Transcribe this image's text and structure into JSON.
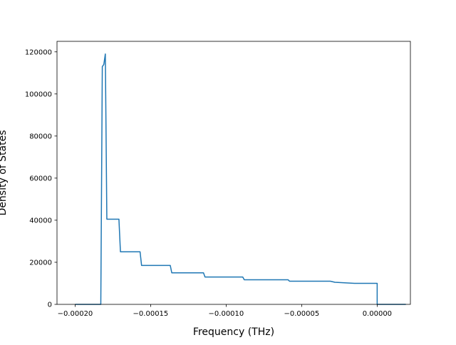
{
  "chart_data": {
    "type": "line",
    "title": "",
    "xlabel": "Frequency (THz)",
    "ylabel": "Density of States",
    "xlim": [
      -0.000212,
      2.2e-05
    ],
    "ylim": [
      0,
      125000
    ],
    "x_ticks": [
      -0.0002,
      -0.00015,
      -0.0001,
      -5e-05,
      0.0
    ],
    "x_tick_labels": [
      "−0.00020",
      "−0.00015",
      "−0.00010",
      "−0.00005",
      "0.00000"
    ],
    "y_ticks": [
      0,
      20000,
      40000,
      60000,
      80000,
      100000,
      120000
    ],
    "y_tick_labels": [
      "0",
      "20000",
      "40000",
      "60000",
      "80000",
      "100000",
      "120000"
    ],
    "grid": false,
    "legend": "none",
    "series": [
      {
        "color": "#1f77b4",
        "x": [
          -0.0002,
          -0.000183,
          -0.000182,
          -0.000181,
          -0.00018,
          -0.000179,
          -0.000178,
          -0.000171,
          -0.00017,
          -0.000157,
          -0.000156,
          -0.000137,
          -0.000136,
          -0.000115,
          -0.000114,
          -8.9e-05,
          -8.8e-05,
          -5.9e-05,
          -5.8e-05,
          -3.1e-05,
          -2.8e-05,
          -1.5e-05,
          0.0,
          0.0,
          1.9e-05
        ],
        "y": [
          0,
          0,
          113000,
          114000,
          119000,
          40500,
          40500,
          40500,
          25000,
          25000,
          18500,
          18500,
          15000,
          15000,
          13000,
          13000,
          11700,
          11700,
          11000,
          11000,
          10500,
          10000,
          10000,
          0,
          0
        ]
      }
    ]
  }
}
